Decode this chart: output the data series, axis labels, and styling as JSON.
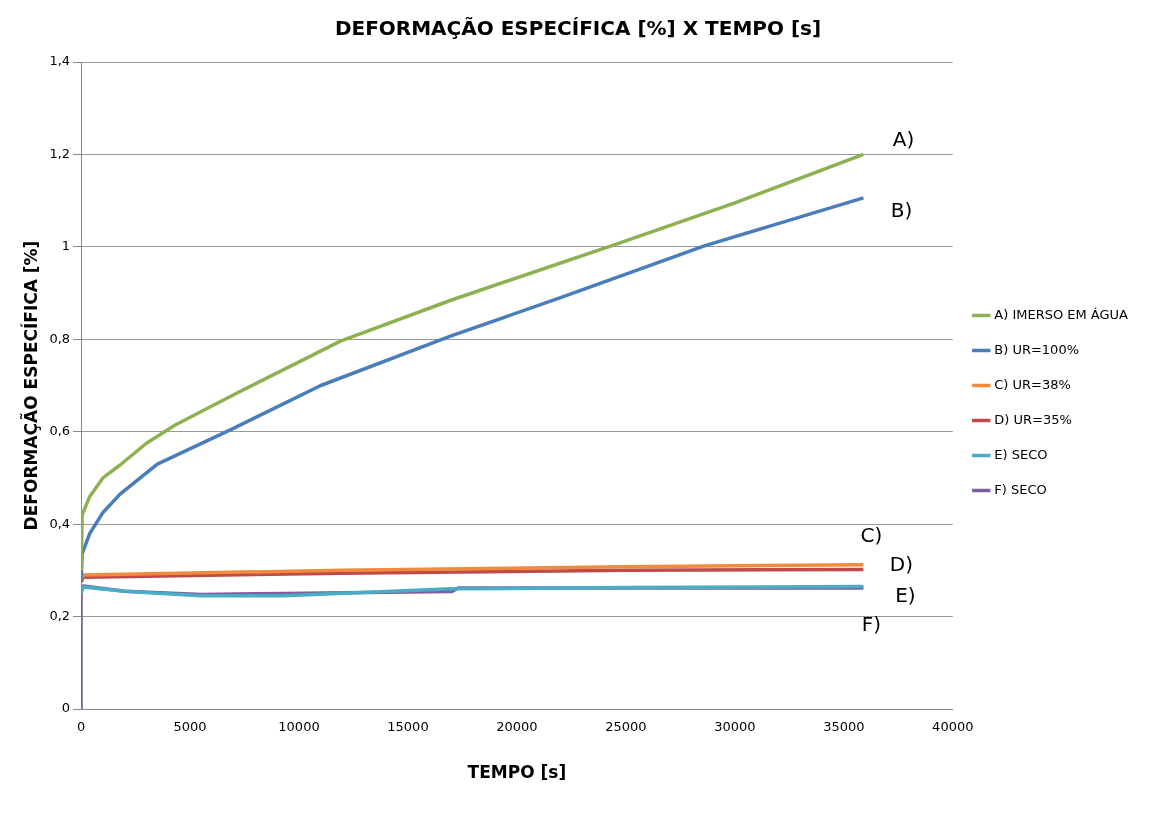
{
  "chart_data": {
    "type": "line",
    "title": "DEFORMAÇÃO ESPECÍFICA [%] X TEMPO [s]",
    "xlabel": "TEMPO [s]",
    "ylabel": "DEFORMAÇÃO ESPECÍFICA [%]",
    "xlim": [
      0,
      40000
    ],
    "xticks": [
      0,
      5000,
      10000,
      15000,
      20000,
      25000,
      30000,
      35000,
      40000
    ],
    "ylim": [
      0,
      1.4
    ],
    "yticks": [
      0,
      {
        "value": 0.2,
        "label": "0,2"
      },
      {
        "value": 0.4,
        "label": "0,4"
      },
      {
        "value": 0.6,
        "label": "0,6"
      },
      {
        "value": 0.8,
        "label": "0,8"
      },
      1,
      {
        "value": 1.2,
        "label": "1,2"
      },
      {
        "value": 1.4,
        "label": "1,4"
      }
    ],
    "grid": "y",
    "legend": "right",
    "marker": "none",
    "line_style": "solid",
    "series": [
      {
        "name": "A) IMERSO EM ÁGUA",
        "color": "#8db050",
        "x": [
          0,
          50,
          400,
          1000,
          1790,
          3000,
          4300,
          7000,
          11900,
          17000,
          24500,
          30000,
          35900
        ],
        "values": [
          0.3,
          0.42,
          0.46,
          0.5,
          0.528,
          0.575,
          0.614,
          0.68,
          0.796,
          0.885,
          1.005,
          1.095,
          1.2
        ]
      },
      {
        "name": "B) UR=100%",
        "color": "#4a7ebb",
        "x": [
          0,
          50,
          400,
          1000,
          1790,
          3500,
          6850,
          11000,
          16950,
          22000,
          28600,
          35900
        ],
        "values": [
          0.28,
          0.336,
          0.38,
          0.425,
          0.465,
          0.53,
          0.604,
          0.7,
          0.807,
          0.89,
          1.002,
          1.106
        ]
      },
      {
        "name": "C) UR=38%",
        "color": "#f08a3c",
        "x": [
          0,
          100,
          11900,
          25000,
          35900
        ],
        "values": [
          0.28,
          0.29,
          0.3,
          0.308,
          0.312
        ]
      },
      {
        "name": "D) UR=35%",
        "color": "#be4b48",
        "x": [
          0,
          100,
          11900,
          25000,
          35900
        ],
        "values": [
          0.275,
          0.285,
          0.294,
          0.3,
          0.302
        ]
      },
      {
        "name": "E) SECO",
        "color": "#4bacc6",
        "x": [
          0,
          100,
          2000,
          5500,
          9300,
          17000,
          25000,
          35900
        ],
        "values": [
          0.25,
          0.264,
          0.255,
          0.245,
          0.245,
          0.26,
          0.263,
          0.265
        ]
      },
      {
        "name": "F) SECO",
        "color": "#7d5fa0",
        "x": [
          0,
          0,
          100,
          2000,
          5500,
          9300,
          17000,
          17300,
          25000,
          35900
        ],
        "values": [
          0,
          0.26,
          0.266,
          0.255,
          0.248,
          0.25,
          0.254,
          0.262,
          0.262,
          0.262
        ]
      }
    ],
    "annotations": [
      "A)",
      "B)",
      "C)",
      "D)",
      "E)",
      "F)"
    ]
  }
}
